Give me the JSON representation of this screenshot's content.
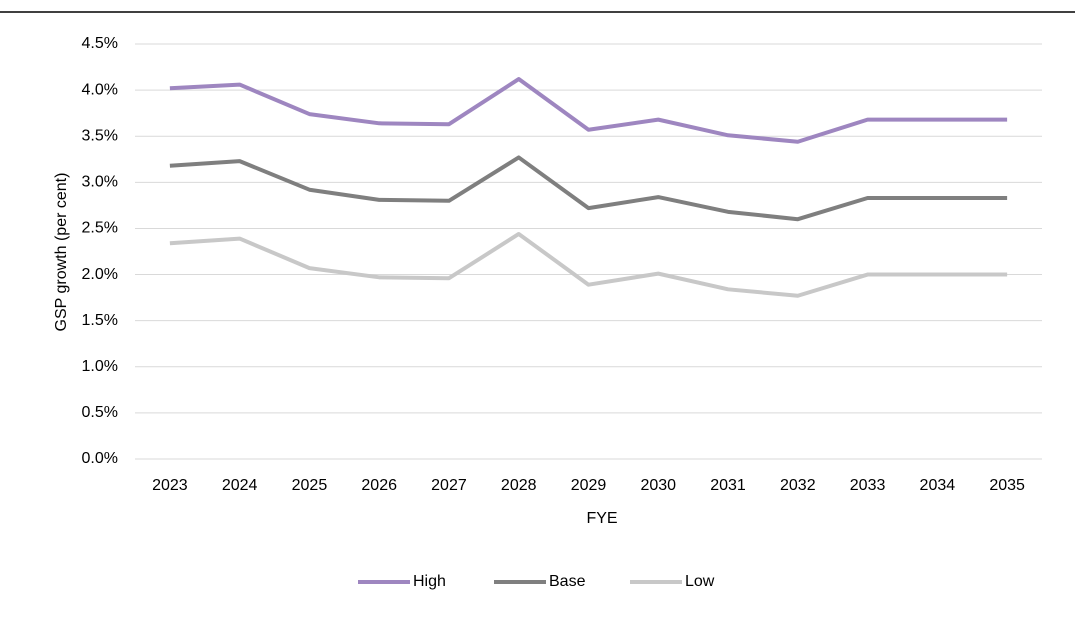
{
  "chart_data": {
    "type": "line",
    "x_label": "FYE",
    "y_label": "GSP growth (per cent)",
    "categories": [
      "2023",
      "2024",
      "2025",
      "2026",
      "2027",
      "2028",
      "2029",
      "2030",
      "2031",
      "2032",
      "2033",
      "2034",
      "2035"
    ],
    "series": [
      {
        "name": "High",
        "color": "#9e86c0",
        "values": [
          4.02,
          4.06,
          3.74,
          3.64,
          3.63,
          4.12,
          3.57,
          3.68,
          3.51,
          3.44,
          3.68,
          3.68,
          3.68
        ]
      },
      {
        "name": "Base",
        "color": "#7f7f7f",
        "values": [
          3.18,
          3.23,
          2.92,
          2.81,
          2.8,
          3.27,
          2.72,
          2.84,
          2.68,
          2.6,
          2.83,
          2.83,
          2.83
        ]
      },
      {
        "name": "Low",
        "color": "#c8c8c8",
        "values": [
          2.34,
          2.39,
          2.07,
          1.97,
          1.96,
          2.44,
          1.89,
          2.01,
          1.84,
          1.77,
          2.0,
          2.0,
          2.0
        ]
      }
    ],
    "ylim": [
      0,
      4.5
    ],
    "yticks": [
      {
        "value": 0,
        "label": "0.0%"
      },
      {
        "value": 0.5,
        "label": "0.5%"
      },
      {
        "value": 1,
        "label": "1.0%"
      },
      {
        "value": 1.5,
        "label": "1.5%"
      },
      {
        "value": 2,
        "label": "2.0%"
      },
      {
        "value": 2.5,
        "label": "2.5%"
      },
      {
        "value": 3,
        "label": "3.0%"
      },
      {
        "value": 3.5,
        "label": "3.5%"
      },
      {
        "value": 4,
        "label": "4.0%"
      },
      {
        "value": 4.5,
        "label": "4.5%"
      }
    ],
    "grid": true,
    "legend": "bottom"
  }
}
